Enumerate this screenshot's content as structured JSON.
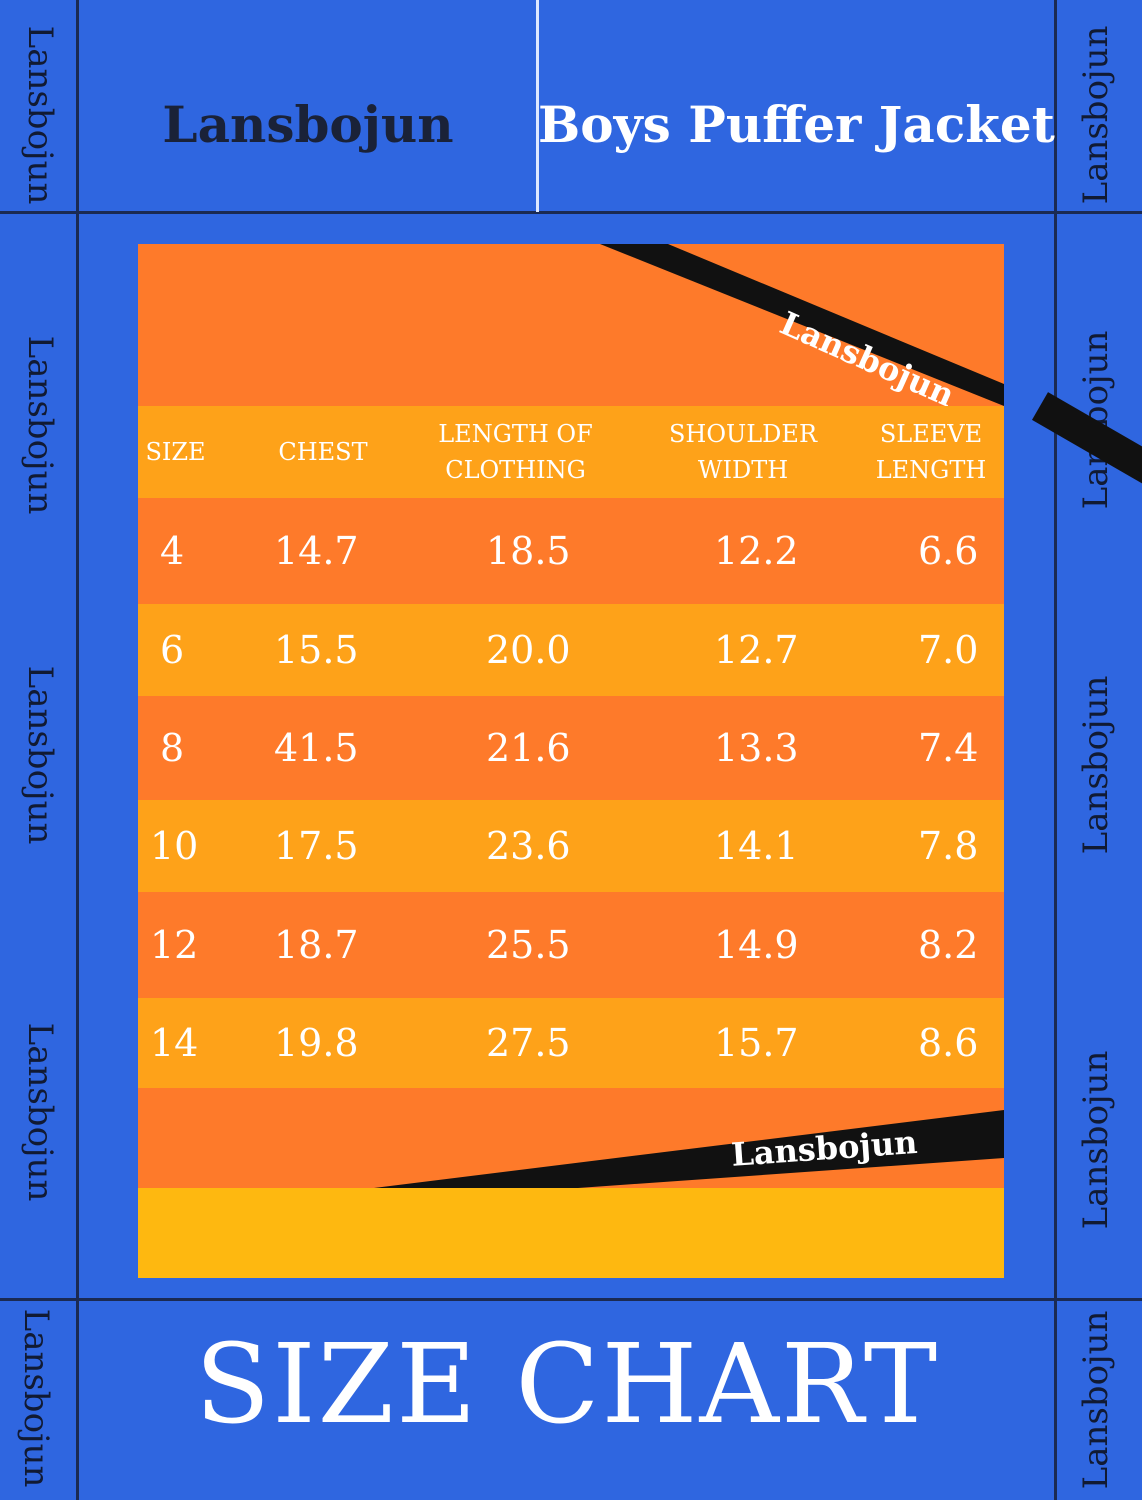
{
  "brand": "Lansbojun",
  "product_title": "Boys Puffer Jacket",
  "footer_title": "SIZE CHART",
  "watermark": "Lansbojun",
  "colors": {
    "background": "#2f66e0",
    "row_dark": "#fe7a2a",
    "row_light": "#fea219",
    "bottom_band": "#feb810",
    "sash": "#111111",
    "text_light": "#ffffff",
    "text_dark": "#1a2238"
  },
  "chart_data": {
    "type": "table",
    "columns": [
      "SIZE",
      "CHEST",
      "LENGTH OF CLOTHING",
      "SHOULDER WIDTH",
      "SLEEVE LENGTH"
    ],
    "rows": [
      [
        "4",
        "14.7",
        "18.5",
        "12.2",
        "6.6"
      ],
      [
        "6",
        "15.5",
        "20.0",
        "12.7",
        "7.0"
      ],
      [
        "8",
        "41.5",
        "21.6",
        "13.3",
        "7.4"
      ],
      [
        "10",
        "17.5",
        "23.6",
        "14.1",
        "7.8"
      ],
      [
        "12",
        "18.7",
        "25.5",
        "14.9",
        "8.2"
      ],
      [
        "14",
        "19.8",
        "27.5",
        "15.7",
        "8.6"
      ]
    ]
  }
}
